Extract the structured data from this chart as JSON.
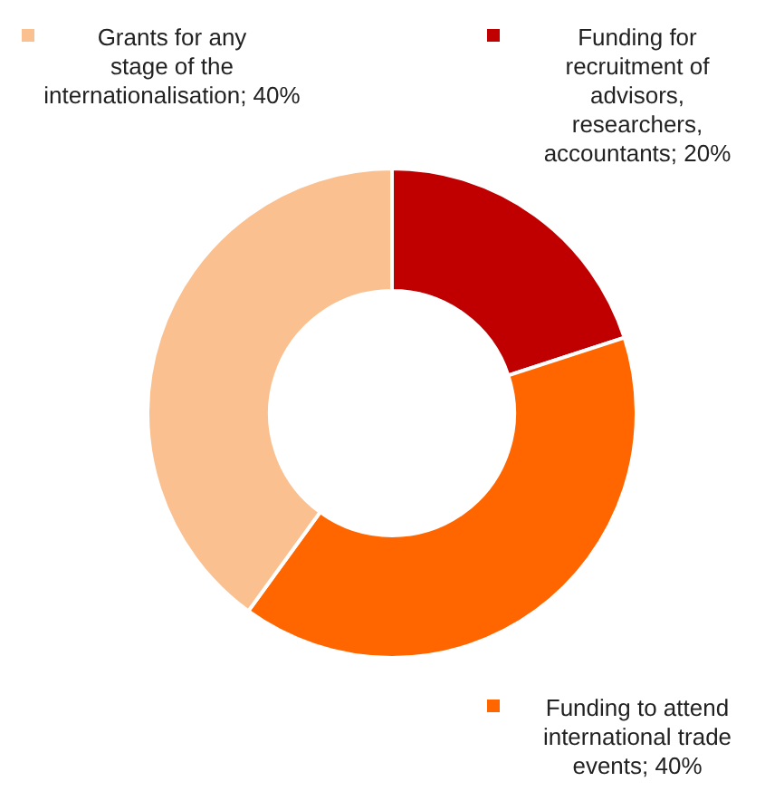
{
  "chart_data": {
    "type": "donut",
    "categories": [
      "Funding for recruitment of advisors, researchers, accountants",
      "Funding to attend international trade events",
      "Grants for any stage of the internationalisation"
    ],
    "values": [
      20,
      40,
      40
    ],
    "colors": [
      "#c00000",
      "#ff6600",
      "#fac090"
    ],
    "value_labels": [
      "20%",
      "40%",
      "40%"
    ]
  }
}
